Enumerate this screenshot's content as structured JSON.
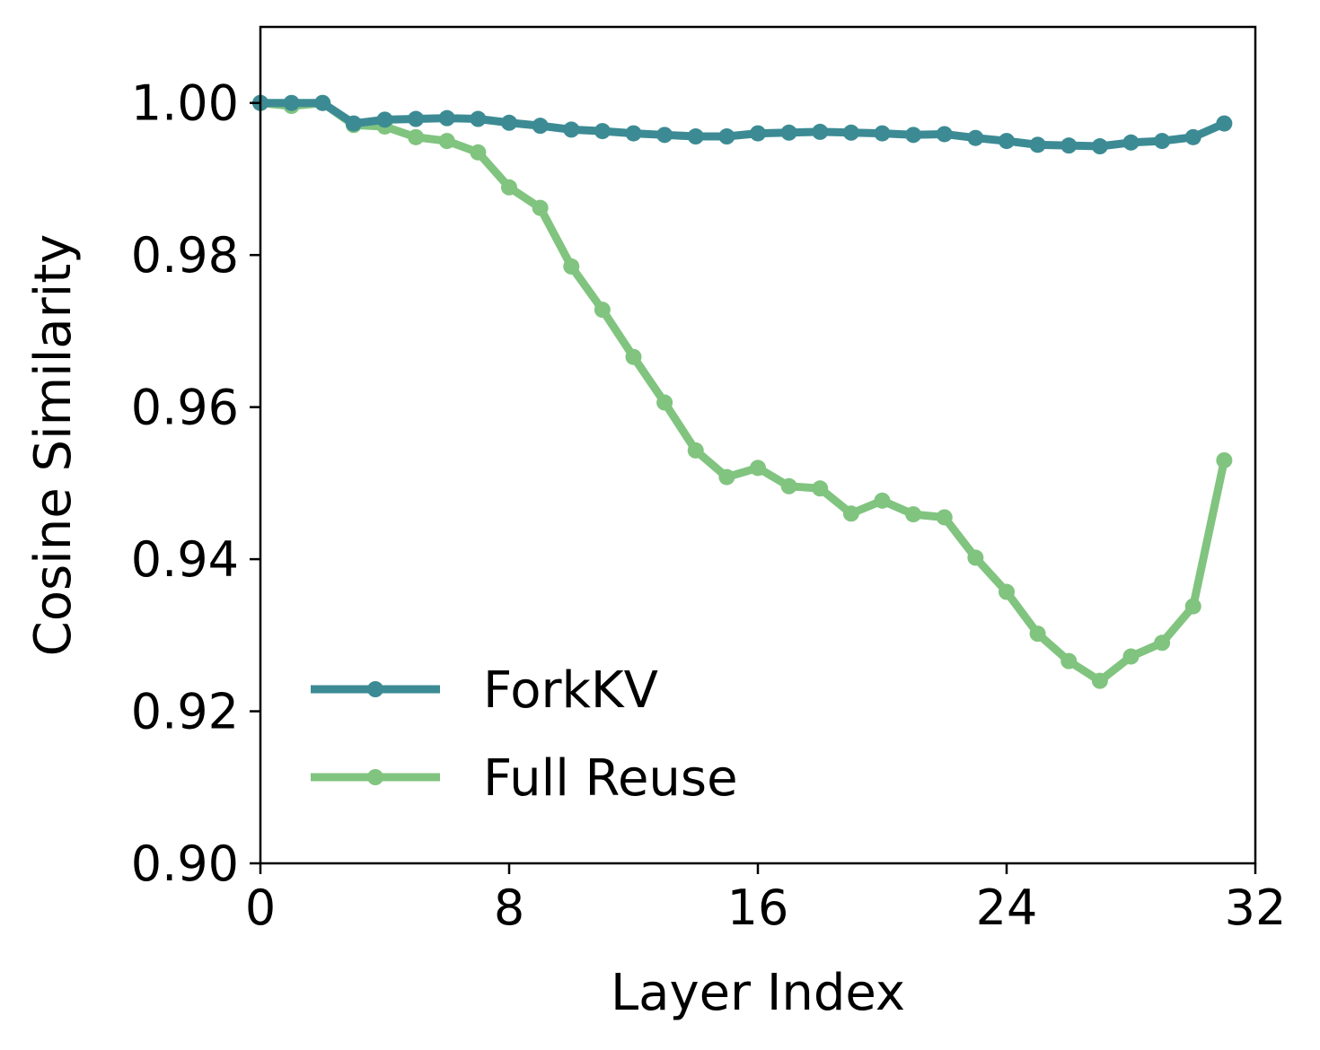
{
  "chart_data": {
    "type": "line",
    "title": "",
    "xlabel": "Layer Index",
    "ylabel": "Cosine Similarity",
    "xlim": [
      0,
      32
    ],
    "ylim": [
      0.9,
      1.01
    ],
    "xticks": [
      0,
      8,
      16,
      24,
      32
    ],
    "xtick_labels": [
      "0",
      "8",
      "16",
      "24",
      "32"
    ],
    "yticks": [
      0.9,
      0.92,
      0.94,
      0.96,
      0.98,
      1.0
    ],
    "ytick_labels": [
      "0.90",
      "0.92",
      "0.94",
      "0.96",
      "0.98",
      "1.00"
    ],
    "grid": false,
    "legend_position": "lower-left",
    "x": [
      0,
      1,
      2,
      3,
      4,
      5,
      6,
      7,
      8,
      9,
      10,
      11,
      12,
      13,
      14,
      15,
      16,
      17,
      18,
      19,
      20,
      21,
      22,
      23,
      24,
      25,
      26,
      27,
      28,
      29,
      30,
      31
    ],
    "series": [
      {
        "name": "ForkKV",
        "color": "#3c8b94",
        "values": [
          1.0,
          1.0,
          1.0,
          0.9973,
          0.9978,
          0.9979,
          0.998,
          0.9979,
          0.9974,
          0.997,
          0.9965,
          0.9963,
          0.996,
          0.9958,
          0.9956,
          0.9956,
          0.996,
          0.9961,
          0.9962,
          0.9961,
          0.996,
          0.9958,
          0.9959,
          0.9954,
          0.995,
          0.9945,
          0.9944,
          0.9943,
          0.9948,
          0.995,
          0.9955,
          0.9973
        ]
      },
      {
        "name": "Full Reuse",
        "color": "#80c47f",
        "values": [
          1.0,
          0.9996,
          1.0,
          0.9971,
          0.9969,
          0.9955,
          0.995,
          0.9935,
          0.9889,
          0.9862,
          0.9785,
          0.9728,
          0.9666,
          0.9606,
          0.9543,
          0.9508,
          0.952,
          0.9496,
          0.9493,
          0.946,
          0.9477,
          0.9459,
          0.9455,
          0.9402,
          0.9357,
          0.9302,
          0.9266,
          0.924,
          0.9272,
          0.929,
          0.9338,
          0.953
        ]
      }
    ]
  }
}
